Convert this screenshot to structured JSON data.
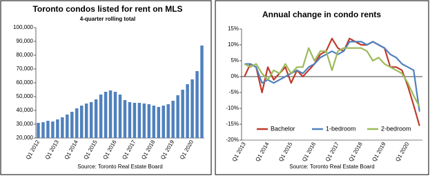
{
  "chart_data": [
    {
      "type": "bar",
      "title": "Toronto condos listed for rent on MLS",
      "subtitle": "4-quarter rolling total",
      "source": "Source: Toronto Real Estate Board",
      "color": "#4f81bd",
      "categories": [
        "Q1 2012",
        null,
        null,
        null,
        "Q1 2013",
        null,
        null,
        null,
        "Q1 2014",
        null,
        null,
        null,
        "Q1 2015",
        null,
        null,
        null,
        "Q1 2016",
        null,
        null,
        null,
        "Q1 2017",
        null,
        null,
        null,
        "Q1 2018",
        null,
        null,
        null,
        "Q1 2019",
        null,
        null,
        null,
        "Q1 2020",
        null,
        null
      ],
      "values": [
        31000,
        31500,
        32500,
        32000,
        33500,
        35000,
        37000,
        39000,
        41500,
        43500,
        45000,
        46000,
        48000,
        51500,
        53500,
        54500,
        53500,
        51500,
        47500,
        46000,
        45500,
        45500,
        45000,
        44500,
        43500,
        42500,
        43500,
        44500,
        47000,
        51000,
        55000,
        59000,
        62500,
        68500,
        87000
      ],
      "ylim": [
        20000,
        100000
      ],
      "yticks": [
        {
          "value": 20000,
          "label": "20,000"
        },
        {
          "value": 30000,
          "label": "30,000"
        },
        {
          "value": 40000,
          "label": "40,000"
        },
        {
          "value": 50000,
          "label": "50,000"
        },
        {
          "value": 60000,
          "label": "60,000"
        },
        {
          "value": 70000,
          "label": "70,000"
        },
        {
          "value": 80000,
          "label": "80,000"
        },
        {
          "value": 90000,
          "label": "90,000"
        },
        {
          "value": 100000,
          "label": "100,000"
        }
      ]
    },
    {
      "type": "line",
      "title": "Annual change in condo rents",
      "source": "Source: Toronto Real Estate Board",
      "categories": [
        "Q1 2013",
        null,
        null,
        null,
        "Q1 2014",
        null,
        null,
        null,
        "Q1 2015",
        null,
        null,
        null,
        "Q1 2016",
        null,
        null,
        null,
        "Q1 2017",
        null,
        null,
        null,
        "Q1 2018",
        null,
        null,
        null,
        "Q1 2019",
        null,
        null,
        null,
        "Q1 2020",
        null,
        null
      ],
      "series": [
        {
          "name": "Bachelor",
          "color": "#c0392b",
          "values": [
            0,
            4,
            3,
            -5,
            3,
            -1,
            1,
            3,
            -2,
            2,
            0,
            2,
            4,
            7,
            8,
            12,
            9,
            8,
            12,
            11,
            10,
            10,
            11,
            10,
            9,
            3,
            3,
            2,
            -3,
            -9,
            -15.5
          ]
        },
        {
          "name": "1-bedroom",
          "color": "#4f81bd",
          "values": [
            4,
            4,
            3,
            -2,
            -1,
            -2,
            -1,
            0,
            1,
            2,
            1,
            3,
            4,
            6,
            7,
            8,
            7,
            8,
            11,
            11,
            11,
            10,
            11,
            10,
            9,
            7,
            6,
            4,
            3,
            2,
            -11
          ]
        },
        {
          "name": "2-bedroom",
          "color": "#9bbb59",
          "values": [
            4,
            3,
            4,
            1,
            -1,
            2,
            1,
            4,
            1,
            3,
            3,
            9,
            5,
            8,
            8,
            2,
            8,
            9,
            9,
            9,
            9,
            8,
            5,
            6,
            4,
            3,
            2,
            1,
            -2,
            -6,
            -9.5
          ]
        }
      ],
      "ylim": [
        -20,
        15
      ],
      "yticks": [
        {
          "value": -20,
          "label": "-20%"
        },
        {
          "value": -15,
          "label": "-15%"
        },
        {
          "value": -10,
          "label": "-10%"
        },
        {
          "value": -5,
          "label": "-5%"
        },
        {
          "value": 0,
          "label": "0%"
        },
        {
          "value": 5,
          "label": "5%"
        },
        {
          "value": 10,
          "label": "10%"
        },
        {
          "value": 15,
          "label": "15%"
        }
      ]
    }
  ]
}
